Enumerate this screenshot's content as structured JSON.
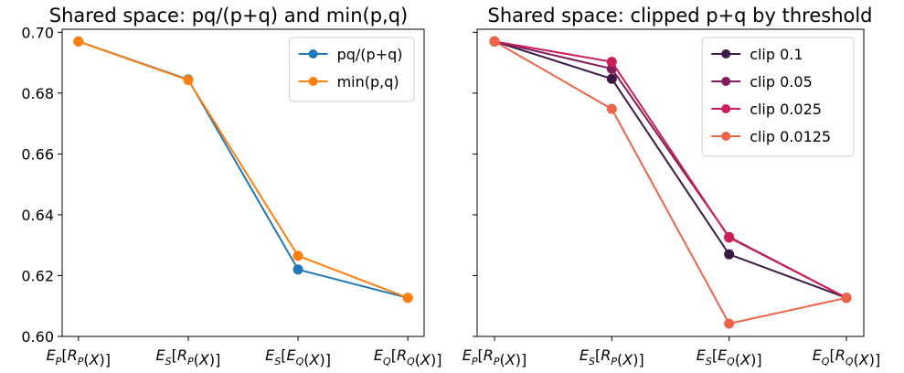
{
  "chart_data": [
    {
      "type": "line",
      "title": "Shared space: pq/(p+q) and min(p,q)",
      "categories": [
        {
          "E": "E",
          "es": "P",
          "R": "R",
          "rs": "P",
          "arg": "(X)"
        },
        {
          "E": "E",
          "es": "S",
          "R": "R",
          "rs": "P",
          "arg": "(X)"
        },
        {
          "E": "E",
          "es": "S",
          "R": "E",
          "rs": "Q",
          "arg": "(X)"
        },
        {
          "E": "E",
          "es": "Q",
          "R": "R",
          "rs": "Q",
          "arg": "(X)"
        }
      ],
      "ylim": [
        0.6,
        0.701
      ],
      "yticks": [
        0.6,
        0.62,
        0.64,
        0.66,
        0.68,
        0.7
      ],
      "ytick_labels": [
        "0.60",
        "0.62",
        "0.64",
        "0.66",
        "0.68",
        "0.70"
      ],
      "show_yticklabels": true,
      "grid": false,
      "legend": "top-right",
      "series": [
        {
          "name": "pq/(p+q)",
          "color": "#1f77b4",
          "values": [
            0.697,
            0.6845,
            0.622,
            0.6127
          ]
        },
        {
          "name": "min(p,q)",
          "color": "#ff7f0e",
          "values": [
            0.697,
            0.6843,
            0.6265,
            0.6127
          ]
        }
      ]
    },
    {
      "type": "line",
      "title": "Shared space: clipped p+q by threshold",
      "categories": [
        {
          "E": "E",
          "es": "P",
          "R": "R",
          "rs": "P",
          "arg": "(X)"
        },
        {
          "E": "E",
          "es": "S",
          "R": "R",
          "rs": "P",
          "arg": "(X)"
        },
        {
          "E": "E",
          "es": "S",
          "R": "E",
          "rs": "Q",
          "arg": "(X)"
        },
        {
          "E": "E",
          "es": "Q",
          "R": "R",
          "rs": "Q",
          "arg": "(X)"
        }
      ],
      "ylim": [
        0.6,
        0.701
      ],
      "yticks": [
        0.6,
        0.62,
        0.64,
        0.66,
        0.68,
        0.7
      ],
      "ytick_labels": [
        "",
        "",
        "",
        "",
        "",
        ""
      ],
      "show_yticklabels": false,
      "grid": false,
      "legend": "top-right",
      "series": [
        {
          "name": "clip 0.1",
          "color": "#3b1a47",
          "values": [
            0.697,
            0.6847,
            0.627,
            0.6127
          ]
        },
        {
          "name": "clip 0.05",
          "color": "#7e1e5a",
          "values": [
            0.697,
            0.688,
            0.6327,
            0.6127
          ]
        },
        {
          "name": "clip 0.025",
          "color": "#cc1f55",
          "values": [
            0.697,
            0.6903,
            0.6325,
            0.6127
          ]
        },
        {
          "name": "clip 0.0125",
          "color": "#ee6447",
          "values": [
            0.697,
            0.6748,
            0.6042,
            0.6127
          ]
        }
      ]
    }
  ]
}
